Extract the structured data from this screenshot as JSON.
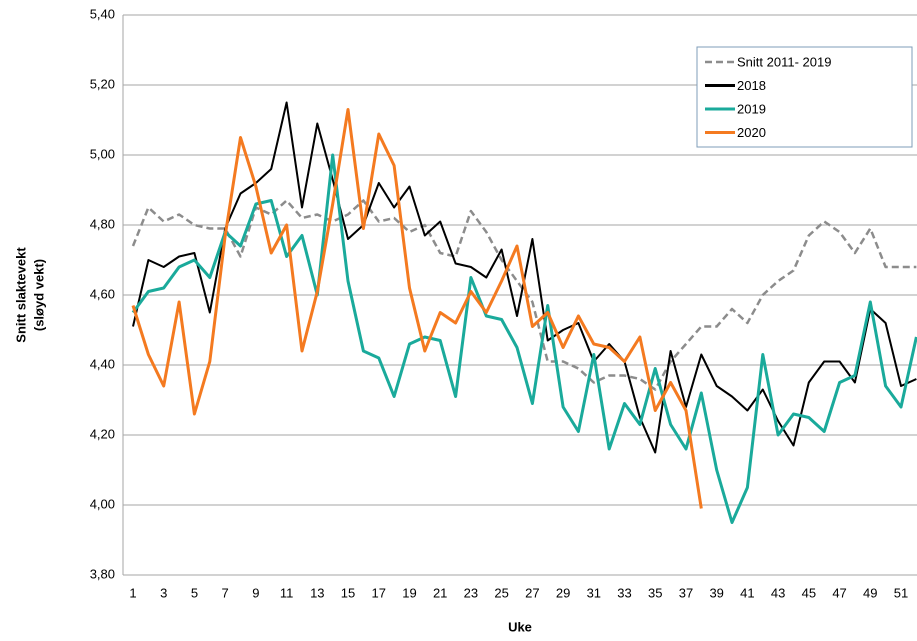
{
  "chart_data": {
    "type": "line",
    "xlabel": "Uke",
    "ylabel": [
      "Snitt slaktevekt",
      "(sløyd vekt)"
    ],
    "categories": [
      "1",
      null,
      "3",
      null,
      "5",
      null,
      "7",
      null,
      "9",
      null,
      "11",
      null,
      "13",
      null,
      "15",
      null,
      "17",
      null,
      "19",
      null,
      "21",
      null,
      "23",
      null,
      "25",
      null,
      "27",
      null,
      "29",
      null,
      "31",
      null,
      "33",
      null,
      "35",
      null,
      "37",
      null,
      "39",
      null,
      "41",
      null,
      "43",
      null,
      "45",
      null,
      "47",
      null,
      "49",
      null,
      "51",
      null
    ],
    "ylim": [
      3.8,
      5.4
    ],
    "yticks": [
      {
        "value": 3.8,
        "label": "3,80"
      },
      {
        "value": 4.0,
        "label": "4,00"
      },
      {
        "value": 4.2,
        "label": "4,20"
      },
      {
        "value": 4.4,
        "label": "4,40"
      },
      {
        "value": 4.6,
        "label": "4,60"
      },
      {
        "value": 4.8,
        "label": "4,80"
      },
      {
        "value": 5.0,
        "label": "5,00"
      },
      {
        "value": 5.2,
        "label": "5,20"
      },
      {
        "value": 5.4,
        "label": "5,40"
      }
    ],
    "grid": true,
    "legend": "upper right",
    "series": [
      {
        "name": "Snitt 2011- 2019",
        "color": "#8c8c8c",
        "dashed": true,
        "values": [
          4.74,
          4.85,
          4.81,
          4.83,
          4.8,
          4.79,
          4.79,
          4.71,
          4.85,
          4.83,
          4.87,
          4.82,
          4.83,
          4.81,
          4.83,
          4.87,
          4.81,
          4.82,
          4.78,
          4.8,
          4.72,
          4.71,
          4.84,
          4.78,
          4.7,
          4.64,
          4.58,
          4.41,
          4.41,
          4.39,
          4.35,
          4.37,
          4.37,
          4.36,
          4.33,
          4.41,
          4.46,
          4.51,
          4.51,
          4.56,
          4.52,
          4.6,
          4.64,
          4.67,
          4.77,
          4.81,
          4.78,
          4.72,
          4.79,
          4.68,
          4.68,
          4.68
        ]
      },
      {
        "name": "2018",
        "color": "#000000",
        "dashed": false,
        "values": [
          4.51,
          4.7,
          4.68,
          4.71,
          4.72,
          4.55,
          4.79,
          4.89,
          4.92,
          4.96,
          5.15,
          4.85,
          5.09,
          4.93,
          4.76,
          4.8,
          4.92,
          4.85,
          4.91,
          4.77,
          4.81,
          4.69,
          4.68,
          4.65,
          4.73,
          4.54,
          4.76,
          4.47,
          4.5,
          4.52,
          4.41,
          4.46,
          4.41,
          4.25,
          4.15,
          4.44,
          4.28,
          4.43,
          4.34,
          4.31,
          4.27,
          4.33,
          4.24,
          4.17,
          4.35,
          4.41,
          4.41,
          4.35,
          4.56,
          4.52,
          4.34,
          4.36
        ]
      },
      {
        "name": "2019",
        "color": "#1aaa9b",
        "dashed": false,
        "values": [
          4.55,
          4.61,
          4.62,
          4.68,
          4.7,
          4.65,
          4.78,
          4.74,
          4.86,
          4.87,
          4.71,
          4.77,
          4.6,
          5.0,
          4.64,
          4.44,
          4.42,
          4.31,
          4.46,
          4.48,
          4.47,
          4.31,
          4.65,
          4.54,
          4.53,
          4.45,
          4.29,
          4.57,
          4.28,
          4.21,
          4.43,
          4.16,
          4.29,
          4.23,
          4.39,
          4.23,
          4.16,
          4.32,
          4.1,
          3.95,
          4.05,
          4.43,
          4.2,
          4.26,
          4.25,
          4.21,
          4.35,
          4.37,
          4.58,
          4.34,
          4.28,
          4.48
        ]
      },
      {
        "name": "2020",
        "color": "#f47a20",
        "dashed": false,
        "values": [
          4.57,
          4.43,
          4.34,
          4.58,
          4.26,
          4.41,
          4.77,
          5.05,
          4.91,
          4.72,
          4.8,
          4.44,
          4.61,
          4.86,
          5.13,
          4.79,
          5.06,
          4.97,
          4.62,
          4.44,
          4.55,
          4.52,
          4.61,
          4.55,
          4.64,
          4.74,
          4.51,
          4.55,
          4.45,
          4.54,
          4.46,
          4.45,
          4.41,
          4.48,
          4.27,
          4.35,
          4.27,
          3.99,
          null,
          null,
          null,
          null,
          null,
          null,
          null,
          null,
          null,
          null,
          null,
          null,
          null,
          null
        ]
      }
    ]
  }
}
